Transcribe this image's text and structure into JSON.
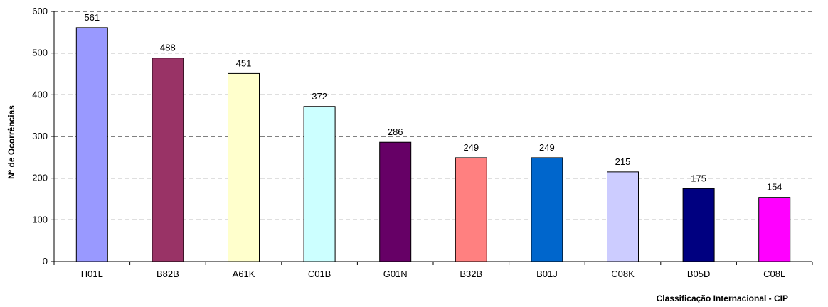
{
  "chart_data": {
    "type": "bar",
    "title": "",
    "xlabel": "Classificação Internacional - CIP",
    "ylabel": "Nº de Ocorrências",
    "categories": [
      "H01L",
      "B82B",
      "A61K",
      "C01B",
      "G01N",
      "B32B",
      "B01J",
      "C08K",
      "B05D",
      "C08L"
    ],
    "values": [
      561,
      488,
      451,
      372,
      286,
      249,
      249,
      215,
      175,
      154
    ],
    "colors": [
      "#9999ff",
      "#993366",
      "#ffffcc",
      "#ccffff",
      "#660066",
      "#ff8080",
      "#0066cc",
      "#ccccff",
      "#000080",
      "#ff00ff"
    ],
    "ylim": [
      0,
      600
    ],
    "yticks": [
      0,
      100,
      200,
      300,
      400,
      500,
      600
    ],
    "grid": "dashed horizontal",
    "legend": "none"
  }
}
